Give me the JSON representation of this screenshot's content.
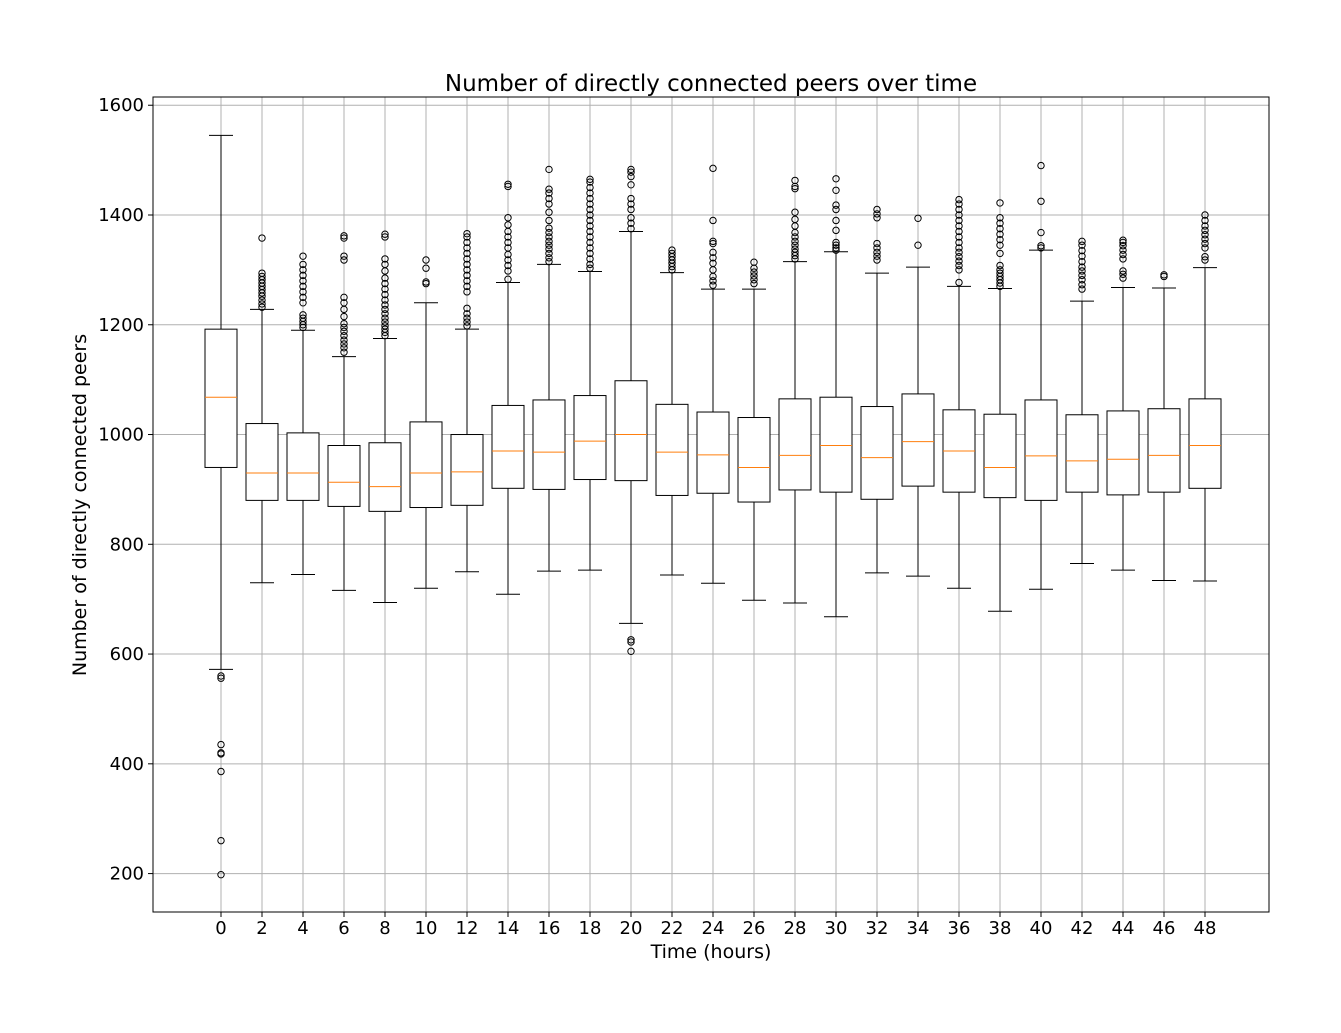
{
  "chart_data": {
    "type": "box",
    "title": "Number of directly connected peers over time",
    "xlabel": "Time (hours)",
    "ylabel": "Number of directly connected peers",
    "ylim": [
      130,
      1615
    ],
    "y_ticks": [
      200,
      400,
      600,
      800,
      1000,
      1200,
      1400,
      1600
    ],
    "grid": true,
    "colors": {
      "box": "#000000",
      "median": "#ff7f0e",
      "grid": "#b0b0b0"
    },
    "boxes": [
      {
        "x": "0",
        "whisker_low": 572,
        "q1": 940,
        "median": 1068,
        "q3": 1192,
        "whisker_high": 1545,
        "outliers": [
          560,
          556,
          435,
          420,
          418,
          386,
          260,
          198
        ]
      },
      {
        "x": "2",
        "whisker_low": 730,
        "q1": 880,
        "median": 930,
        "q3": 1020,
        "whisker_high": 1228,
        "outliers": [
          1232,
          1238,
          1245,
          1252,
          1258,
          1264,
          1270,
          1276,
          1282,
          1288,
          1294,
          1358
        ]
      },
      {
        "x": "4",
        "whisker_low": 745,
        "q1": 880,
        "median": 930,
        "q3": 1003,
        "whisker_high": 1190,
        "outliers": [
          1195,
          1200,
          1206,
          1212,
          1218,
          1240,
          1250,
          1260,
          1270,
          1280,
          1290,
          1300,
          1310,
          1325
        ]
      },
      {
        "x": "6",
        "whisker_low": 716,
        "q1": 869,
        "median": 913,
        "q3": 980,
        "whisker_high": 1142,
        "outliers": [
          1150,
          1158,
          1165,
          1172,
          1180,
          1188,
          1195,
          1202,
          1215,
          1228,
          1240,
          1250,
          1318,
          1325,
          1358,
          1362
        ]
      },
      {
        "x": "8",
        "whisker_low": 694,
        "q1": 860,
        "median": 905,
        "q3": 985,
        "whisker_high": 1175,
        "outliers": [
          1180,
          1186,
          1192,
          1198,
          1205,
          1212,
          1220,
          1228,
          1236,
          1245,
          1255,
          1265,
          1275,
          1285,
          1298,
          1310,
          1320,
          1360,
          1365
        ]
      },
      {
        "x": "10",
        "whisker_low": 720,
        "q1": 867,
        "median": 930,
        "q3": 1023,
        "whisker_high": 1240,
        "outliers": [
          1275,
          1278,
          1303,
          1318
        ]
      },
      {
        "x": "12",
        "whisker_low": 750,
        "q1": 871,
        "median": 932,
        "q3": 1000,
        "whisker_high": 1192,
        "outliers": [
          1198,
          1205,
          1212,
          1220,
          1230,
          1260,
          1270,
          1280,
          1290,
          1300,
          1310,
          1320,
          1330,
          1340,
          1350,
          1360,
          1366
        ]
      },
      {
        "x": "14",
        "whisker_low": 709,
        "q1": 902,
        "median": 970,
        "q3": 1053,
        "whisker_high": 1277,
        "outliers": [
          1283,
          1298,
          1308,
          1318,
          1328,
          1340,
          1350,
          1360,
          1370,
          1382,
          1395,
          1452,
          1456
        ]
      },
      {
        "x": "16",
        "whisker_low": 751,
        "q1": 900,
        "median": 968,
        "q3": 1063,
        "whisker_high": 1310,
        "outliers": [
          1315,
          1322,
          1330,
          1338,
          1345,
          1352,
          1360,
          1368,
          1376,
          1390,
          1405,
          1420,
          1430,
          1440,
          1447,
          1483
        ]
      },
      {
        "x": "18",
        "whisker_low": 753,
        "q1": 918,
        "median": 988,
        "q3": 1071,
        "whisker_high": 1297,
        "outliers": [
          1303,
          1310,
          1320,
          1330,
          1340,
          1350,
          1360,
          1370,
          1380,
          1390,
          1400,
          1410,
          1420,
          1430,
          1440,
          1450,
          1460,
          1465
        ]
      },
      {
        "x": "20",
        "whisker_low": 656,
        "q1": 916,
        "median": 1000,
        "q3": 1098,
        "whisker_high": 1370,
        "outliers": [
          626,
          622,
          605,
          1375,
          1385,
          1395,
          1410,
          1420,
          1430,
          1455,
          1470,
          1478,
          1483
        ]
      },
      {
        "x": "22",
        "whisker_low": 744,
        "q1": 889,
        "median": 968,
        "q3": 1055,
        "whisker_high": 1295,
        "outliers": [
          1300,
          1306,
          1312,
          1318,
          1324,
          1330,
          1336
        ]
      },
      {
        "x": "24",
        "whisker_low": 729,
        "q1": 893,
        "median": 963,
        "q3": 1041,
        "whisker_high": 1265,
        "outliers": [
          1272,
          1280,
          1288,
          1300,
          1312,
          1322,
          1332,
          1348,
          1352,
          1390,
          1485
        ]
      },
      {
        "x": "26",
        "whisker_low": 698,
        "q1": 877,
        "median": 940,
        "q3": 1031,
        "whisker_high": 1265,
        "outliers": [
          1275,
          1282,
          1289,
          1296,
          1303,
          1314
        ]
      },
      {
        "x": "28",
        "whisker_low": 693,
        "q1": 899,
        "median": 962,
        "q3": 1065,
        "whisker_high": 1315,
        "outliers": [
          1320,
          1326,
          1332,
          1338,
          1345,
          1352,
          1360,
          1368,
          1380,
          1392,
          1405,
          1448,
          1452,
          1463
        ]
      },
      {
        "x": "30",
        "whisker_low": 668,
        "q1": 895,
        "median": 980,
        "q3": 1068,
        "whisker_high": 1333,
        "outliers": [
          1336,
          1340,
          1345,
          1350,
          1372,
          1390,
          1410,
          1418,
          1445,
          1466
        ]
      },
      {
        "x": "32",
        "whisker_low": 748,
        "q1": 882,
        "median": 958,
        "q3": 1051,
        "whisker_high": 1294,
        "outliers": [
          1318,
          1325,
          1332,
          1340,
          1348,
          1395,
          1402,
          1410
        ]
      },
      {
        "x": "34",
        "whisker_low": 742,
        "q1": 906,
        "median": 987,
        "q3": 1074,
        "whisker_high": 1305,
        "outliers": [
          1345,
          1394
        ]
      },
      {
        "x": "36",
        "whisker_low": 720,
        "q1": 895,
        "median": 970,
        "q3": 1045,
        "whisker_high": 1270,
        "outliers": [
          1277,
          1300,
          1308,
          1316,
          1324,
          1332,
          1340,
          1350,
          1360,
          1370,
          1380,
          1390,
          1400,
          1410,
          1420,
          1428
        ]
      },
      {
        "x": "38",
        "whisker_low": 678,
        "q1": 885,
        "median": 940,
        "q3": 1037,
        "whisker_high": 1266,
        "outliers": [
          1270,
          1276,
          1282,
          1288,
          1294,
          1300,
          1308,
          1330,
          1345,
          1355,
          1365,
          1375,
          1385,
          1395,
          1422
        ]
      },
      {
        "x": "40",
        "whisker_low": 718,
        "q1": 880,
        "median": 961,
        "q3": 1063,
        "whisker_high": 1336,
        "outliers": [
          1340,
          1344,
          1368,
          1425,
          1490
        ]
      },
      {
        "x": "42",
        "whisker_low": 765,
        "q1": 895,
        "median": 952,
        "q3": 1036,
        "whisker_high": 1243,
        "outliers": [
          1265,
          1273,
          1282,
          1290,
          1298,
          1305,
          1315,
          1325,
          1335,
          1345,
          1352
        ]
      },
      {
        "x": "44",
        "whisker_low": 753,
        "q1": 890,
        "median": 955,
        "q3": 1043,
        "whisker_high": 1268,
        "outliers": [
          1285,
          1292,
          1298,
          1320,
          1328,
          1336,
          1344,
          1350,
          1354
        ]
      },
      {
        "x": "46",
        "whisker_low": 734,
        "q1": 895,
        "median": 962,
        "q3": 1047,
        "whisker_high": 1267,
        "outliers": [
          1288,
          1291
        ]
      },
      {
        "x": "48",
        "whisker_low": 733,
        "q1": 902,
        "median": 980,
        "q3": 1065,
        "whisker_high": 1304,
        "outliers": [
          1318,
          1324,
          1340,
          1348,
          1356,
          1364,
          1372,
          1380,
          1390,
          1400
        ]
      }
    ]
  }
}
